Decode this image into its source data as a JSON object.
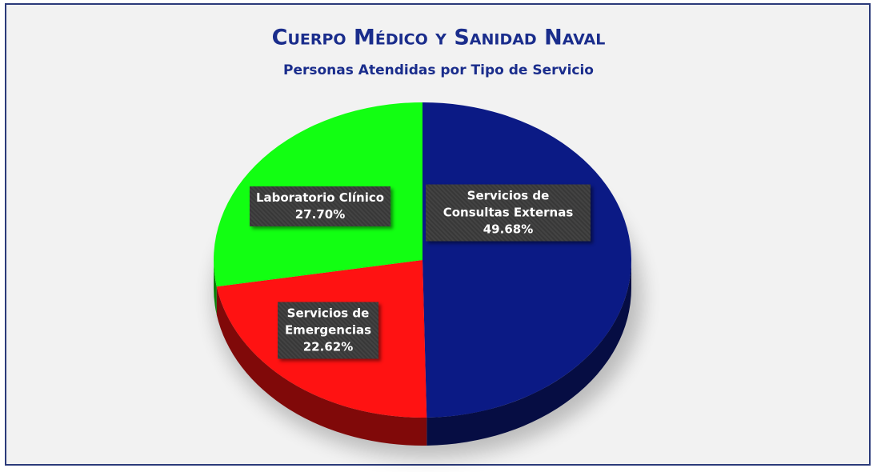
{
  "chart_data": {
    "type": "pie",
    "title": "Cuerpo Médico y Sanidad Naval",
    "subtitle": "Personas Atendidas por Tipo de Servicio",
    "categories": [
      "Servicios de Consultas Externas",
      "Servicios de Emergencias",
      "Laboratorio Clínico"
    ],
    "values": [
      49.68,
      22.62,
      27.7
    ],
    "value_labels": [
      "49.68%",
      "22.62%",
      "27.70%"
    ],
    "colors": [
      "#0b1a85",
      "#ff1212",
      "#12ff12"
    ]
  }
}
